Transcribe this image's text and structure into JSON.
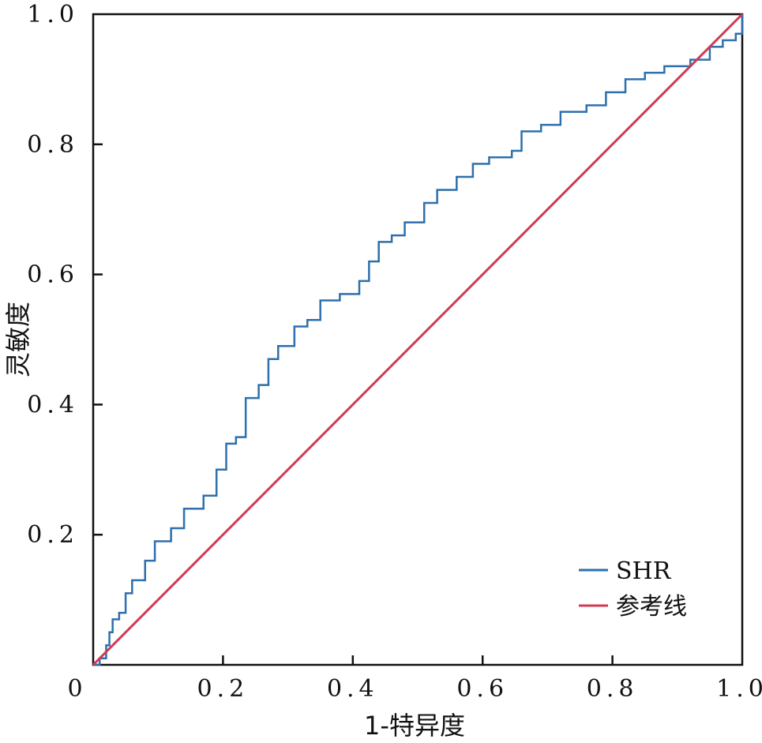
{
  "chart_data": {
    "type": "line",
    "title": "",
    "xlabel": "1-特异度",
    "ylabel": "灵敏度",
    "xlim": [
      0,
      1
    ],
    "ylim": [
      0,
      1
    ],
    "x_ticks": [
      "0",
      "0.2",
      "0.4",
      "0.6",
      "0.8",
      "1.0"
    ],
    "y_ticks": [
      "0.2",
      "0.4",
      "0.6",
      "0.8",
      "1.0"
    ],
    "grid": false,
    "legend_position": "bottom-right",
    "series": [
      {
        "name": "SHR",
        "color": "#2e6fac",
        "points": [
          [
            0,
            0
          ],
          [
            0.01,
            0.01
          ],
          [
            0.02,
            0.03
          ],
          [
            0.025,
            0.05
          ],
          [
            0.03,
            0.07
          ],
          [
            0.04,
            0.08
          ],
          [
            0.05,
            0.11
          ],
          [
            0.06,
            0.13
          ],
          [
            0.08,
            0.16
          ],
          [
            0.095,
            0.19
          ],
          [
            0.12,
            0.21
          ],
          [
            0.14,
            0.24
          ],
          [
            0.17,
            0.26
          ],
          [
            0.19,
            0.3
          ],
          [
            0.205,
            0.34
          ],
          [
            0.22,
            0.35
          ],
          [
            0.235,
            0.41
          ],
          [
            0.255,
            0.43
          ],
          [
            0.27,
            0.47
          ],
          [
            0.285,
            0.49
          ],
          [
            0.31,
            0.52
          ],
          [
            0.33,
            0.53
          ],
          [
            0.35,
            0.56
          ],
          [
            0.38,
            0.57
          ],
          [
            0.41,
            0.59
          ],
          [
            0.425,
            0.62
          ],
          [
            0.44,
            0.65
          ],
          [
            0.46,
            0.66
          ],
          [
            0.48,
            0.68
          ],
          [
            0.51,
            0.71
          ],
          [
            0.53,
            0.73
          ],
          [
            0.56,
            0.75
          ],
          [
            0.585,
            0.77
          ],
          [
            0.61,
            0.78
          ],
          [
            0.645,
            0.79
          ],
          [
            0.66,
            0.82
          ],
          [
            0.69,
            0.83
          ],
          [
            0.72,
            0.85
          ],
          [
            0.76,
            0.86
          ],
          [
            0.79,
            0.88
          ],
          [
            0.82,
            0.9
          ],
          [
            0.85,
            0.91
          ],
          [
            0.88,
            0.92
          ],
          [
            0.92,
            0.93
          ],
          [
            0.95,
            0.95
          ],
          [
            0.97,
            0.96
          ],
          [
            0.99,
            0.97
          ],
          [
            1.0,
            1.0
          ]
        ]
      },
      {
        "name": "参考线",
        "color": "#d03a52",
        "points": [
          [
            0,
            0
          ],
          [
            1,
            1
          ]
        ]
      }
    ]
  }
}
